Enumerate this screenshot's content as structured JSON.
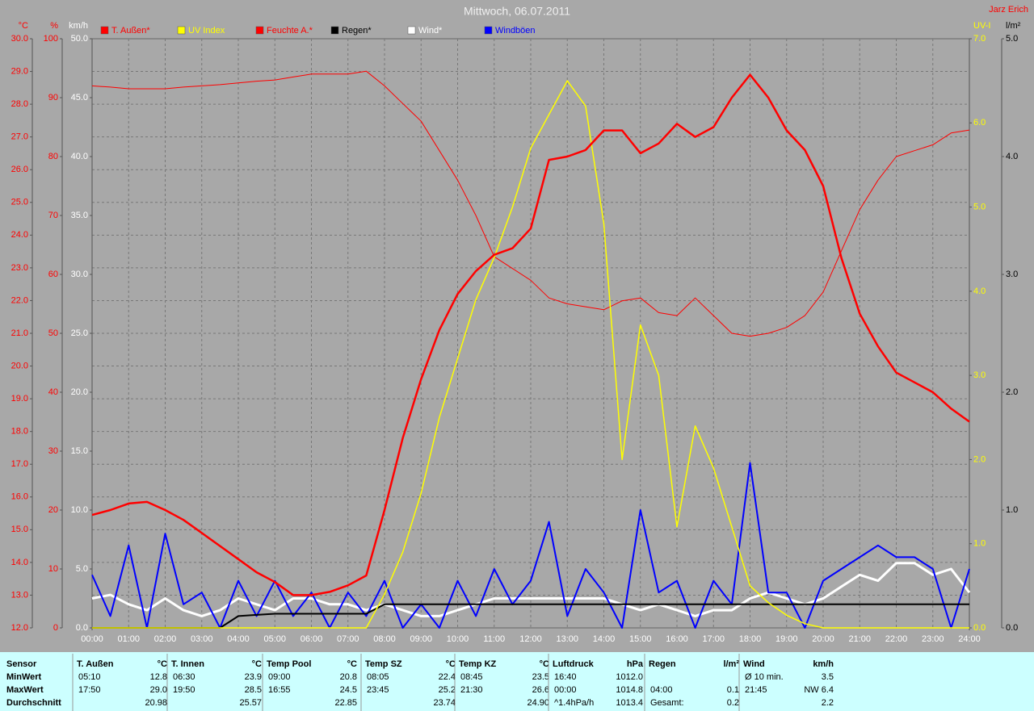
{
  "chart_data": {
    "type": "line",
    "title": "Mittwoch, 06.07.2011",
    "author": "Jarz Erich",
    "grid": true,
    "x": [
      0,
      0.5,
      1,
      1.5,
      2,
      2.5,
      3,
      3.5,
      4,
      4.5,
      5,
      5.5,
      6,
      6.5,
      7,
      7.5,
      8,
      8.5,
      9,
      9.5,
      10,
      10.5,
      11,
      11.5,
      12,
      12.5,
      13,
      13.5,
      14,
      14.5,
      15,
      15.5,
      16,
      16.5,
      17,
      17.5,
      18,
      18.5,
      19,
      19.5,
      20,
      20.5,
      21,
      21.5,
      22,
      22.5,
      23,
      23.5,
      24
    ],
    "xlim": [
      0,
      24
    ],
    "xticks": [
      {
        "value": 0,
        "label": "00:00"
      },
      {
        "value": 1,
        "label": "01:00"
      },
      {
        "value": 2,
        "label": "02:00"
      },
      {
        "value": 3,
        "label": "03:00"
      },
      {
        "value": 4,
        "label": "04:00"
      },
      {
        "value": 5,
        "label": "05:00"
      },
      {
        "value": 6,
        "label": "06:00"
      },
      {
        "value": 7,
        "label": "07:00"
      },
      {
        "value": 8,
        "label": "08:00"
      },
      {
        "value": 9,
        "label": "09:00"
      },
      {
        "value": 10,
        "label": "10:00"
      },
      {
        "value": 11,
        "label": "11:00"
      },
      {
        "value": 12,
        "label": "12:00"
      },
      {
        "value": 13,
        "label": "13:00"
      },
      {
        "value": 14,
        "label": "14:00"
      },
      {
        "value": 15,
        "label": "15:00"
      },
      {
        "value": 16,
        "label": "16:00"
      },
      {
        "value": 17,
        "label": "17:00"
      },
      {
        "value": 18,
        "label": "18:00"
      },
      {
        "value": 19,
        "label": "19:00"
      },
      {
        "value": 20,
        "label": "20:00"
      },
      {
        "value": 21,
        "label": "21:00"
      },
      {
        "value": 22,
        "label": "22:00"
      },
      {
        "value": 23,
        "label": "23:00"
      },
      {
        "value": 24,
        "label": "24:00"
      }
    ],
    "axes": [
      {
        "label": "°C",
        "side": "left",
        "color": "#ff0000",
        "lim": [
          12,
          30
        ],
        "ticks": [
          {
            "value": 12,
            "label": "12.0"
          },
          {
            "value": 13,
            "label": "13.0"
          },
          {
            "value": 14,
            "label": "14.0"
          },
          {
            "value": 15,
            "label": "15.0"
          },
          {
            "value": 16,
            "label": "16.0"
          },
          {
            "value": 17,
            "label": "17.0"
          },
          {
            "value": 18,
            "label": "18.0"
          },
          {
            "value": 19,
            "label": "19.0"
          },
          {
            "value": 20,
            "label": "20.0"
          },
          {
            "value": 21,
            "label": "21.0"
          },
          {
            "value": 22,
            "label": "22.0"
          },
          {
            "value": 23,
            "label": "23.0"
          },
          {
            "value": 24,
            "label": "24.0"
          },
          {
            "value": 25,
            "label": "25.0"
          },
          {
            "value": 26,
            "label": "26.0"
          },
          {
            "value": 27,
            "label": "27.0"
          },
          {
            "value": 28,
            "label": "28.0"
          },
          {
            "value": 29,
            "label": "29.0"
          },
          {
            "value": 30,
            "label": "30.0"
          }
        ]
      },
      {
        "label": "%",
        "side": "left",
        "color": "#ff0000",
        "lim": [
          0,
          100
        ],
        "ticks": [
          0,
          10,
          20,
          30,
          40,
          50,
          60,
          70,
          80,
          90,
          100
        ]
      },
      {
        "label": "km/h",
        "side": "left",
        "color": "#ffffff",
        "lim": [
          0,
          50
        ],
        "ticks": [
          {
            "value": 0,
            "label": "0.0"
          },
          {
            "value": 5,
            "label": "5.0"
          },
          {
            "value": 10,
            "label": "10.0"
          },
          {
            "value": 15,
            "label": "15.0"
          },
          {
            "value": 20,
            "label": "20.0"
          },
          {
            "value": 25,
            "label": "25.0"
          },
          {
            "value": 30,
            "label": "30.0"
          },
          {
            "value": 35,
            "label": "35.0"
          },
          {
            "value": 40,
            "label": "40.0"
          },
          {
            "value": 45,
            "label": "45.0"
          },
          {
            "value": 50,
            "label": "50.0"
          }
        ]
      },
      {
        "label": "UV-I",
        "side": "right",
        "color": "#ffff00",
        "lim": [
          0,
          7
        ],
        "ticks": [
          {
            "value": 0,
            "label": "0.0"
          },
          {
            "value": 1,
            "label": "1.0"
          },
          {
            "value": 2,
            "label": "2.0"
          },
          {
            "value": 3,
            "label": "3.0"
          },
          {
            "value": 4,
            "label": "4.0"
          },
          {
            "value": 5,
            "label": "5.0"
          },
          {
            "value": 6,
            "label": "6.0"
          },
          {
            "value": 7,
            "label": "7.0"
          }
        ]
      },
      {
        "label": "l/m²",
        "side": "right",
        "color": "#000000",
        "lim": [
          0,
          5
        ],
        "ticks": [
          {
            "value": 0,
            "label": "0.0"
          },
          {
            "value": 1,
            "label": "1.0"
          },
          {
            "value": 2,
            "label": "2.0"
          },
          {
            "value": 3,
            "label": "3.0"
          },
          {
            "value": 4,
            "label": "4.0"
          },
          {
            "value": 5,
            "label": "5.0"
          }
        ]
      }
    ],
    "series": [
      {
        "name": "T. Außen*",
        "color": "#ff0000",
        "axis": 0,
        "width": 2.5,
        "values": [
          15.45,
          15.6,
          15.8,
          15.85,
          15.6,
          15.3,
          14.9,
          14.5,
          14.1,
          13.7,
          13.4,
          13.0,
          13.0,
          13.1,
          13.3,
          13.6,
          15.6,
          17.8,
          19.6,
          21.1,
          22.2,
          22.9,
          23.4,
          23.6,
          24.2,
          26.3,
          26.4,
          26.6,
          27.2,
          27.2,
          26.5,
          26.8,
          27.4,
          27.0,
          27.3,
          28.2,
          28.9,
          28.2,
          27.2,
          26.6,
          25.5,
          23.3,
          21.6,
          20.6,
          19.8,
          19.5,
          19.2,
          18.7,
          18.3
        ]
      },
      {
        "name": "UV Index",
        "color": "#ffff00",
        "axis": 3,
        "width": 1.5,
        "values": [
          0,
          0,
          0,
          0,
          0,
          0,
          0,
          0,
          0,
          0,
          0,
          0,
          0,
          0,
          0,
          0,
          0.4,
          0.9,
          1.6,
          2.5,
          3.2,
          3.9,
          4.4,
          5.0,
          5.7,
          6.1,
          6.5,
          6.2,
          4.8,
          2.0,
          3.6,
          3.0,
          1.2,
          2.4,
          1.9,
          1.2,
          0.5,
          0.3,
          0.15,
          0.05,
          0,
          0,
          0,
          0,
          0,
          0,
          0,
          0,
          0
        ]
      },
      {
        "name": "Feuchte A.*",
        "color": "#ff0000",
        "axis": 1,
        "width": 1,
        "values": [
          92,
          91.8,
          91.5,
          91.5,
          91.5,
          91.8,
          92,
          92.2,
          92.5,
          92.8,
          93,
          93.5,
          94,
          94,
          94,
          94.5,
          92,
          89,
          86,
          81,
          76,
          70,
          63,
          61,
          59,
          56,
          55,
          54.5,
          54,
          55.5,
          56,
          53.5,
          53,
          56,
          53,
          50,
          49.5,
          50,
          51,
          53,
          57,
          64,
          71,
          76,
          80,
          81,
          82,
          84,
          84.5
        ]
      },
      {
        "name": "Regen*",
        "color": "#000000",
        "axis": 4,
        "width": 2,
        "values": [
          0,
          0,
          0,
          0,
          0,
          0,
          0,
          0,
          0.1,
          0.11,
          0.12,
          0.12,
          0.12,
          0.12,
          0.12,
          0.12,
          0.2,
          0.2,
          0.2,
          0.2,
          0.2,
          0.2,
          0.2,
          0.2,
          0.2,
          0.2,
          0.2,
          0.2,
          0.2,
          0.2,
          0.2,
          0.2,
          0.2,
          0.2,
          0.2,
          0.2,
          0.2,
          0.2,
          0.2,
          0.2,
          0.2,
          0.2,
          0.2,
          0.2,
          0.2,
          0.2,
          0.2,
          0.2,
          0.2
        ]
      },
      {
        "name": "Wind*",
        "color": "#ffffff",
        "axis": 2,
        "width": 3,
        "values": [
          2.5,
          2.8,
          2.0,
          1.5,
          2.5,
          1.5,
          1.0,
          1.5,
          2.5,
          2.0,
          1.5,
          2.5,
          2.5,
          2.0,
          2.0,
          1.5,
          2.0,
          1.5,
          1.0,
          1.0,
          1.5,
          2.0,
          2.5,
          2.5,
          2.5,
          2.5,
          2.5,
          2.5,
          2.5,
          2.0,
          1.5,
          2.0,
          1.5,
          1.0,
          1.5,
          1.5,
          2.5,
          3.0,
          2.5,
          2.0,
          2.5,
          3.5,
          4.5,
          4.0,
          5.5,
          5.5,
          4.5,
          5.0,
          3.0
        ]
      },
      {
        "name": "Windböen",
        "color": "#0000ff",
        "axis": 2,
        "width": 2,
        "values": [
          4.5,
          1,
          7,
          0,
          8,
          2,
          3,
          0,
          4,
          1,
          4,
          1,
          3,
          0,
          3,
          1,
          4,
          0,
          2,
          0,
          4,
          1,
          5,
          2,
          4,
          9,
          1,
          5,
          3,
          0,
          10,
          3,
          4,
          0,
          4,
          2,
          14,
          3,
          3,
          0,
          4,
          5,
          6,
          7,
          6,
          6,
          5,
          0,
          5
        ]
      }
    ]
  },
  "table": {
    "rows": [
      "MinWert",
      "MaxWert",
      "Durchschnitt"
    ],
    "header": "Sensor",
    "columns": [
      {
        "name": "T. Außen",
        "unit": "°C",
        "cells": [
          [
            "05:10",
            "12.8"
          ],
          [
            "17:50",
            "29.0"
          ],
          [
            "20.98"
          ]
        ]
      },
      {
        "name": "T. Innen",
        "unit": "°C",
        "cells": [
          [
            "06:30",
            "23.9"
          ],
          [
            "19:50",
            "28.5"
          ],
          [
            "25.57"
          ]
        ]
      },
      {
        "name": "Temp Pool",
        "unit": "°C",
        "cells": [
          [
            "09:00",
            "20.8"
          ],
          [
            "16:55",
            "24.5"
          ],
          [
            "22.85"
          ]
        ]
      },
      {
        "name": "Temp SZ",
        "unit": "°C",
        "cells": [
          [
            "08:05",
            "22.4"
          ],
          [
            "23:45",
            "25.2"
          ],
          [
            "23.74"
          ]
        ]
      },
      {
        "name": "Temp KZ",
        "unit": "°C",
        "cells": [
          [
            "08:45",
            "23.5"
          ],
          [
            "21:30",
            "26.6"
          ],
          [
            "24.90"
          ]
        ]
      },
      {
        "name": "Luftdruck",
        "unit": "hPa",
        "cells": [
          [
            "16:40",
            "1012.0"
          ],
          [
            "00:00",
            "1014.8"
          ],
          [
            "^1.4hPa/h",
            "1013.4"
          ]
        ]
      },
      {
        "name": "Regen",
        "unit": "l/m²",
        "cells": [
          [],
          [
            "04:00",
            "0.1"
          ],
          [
            "Gesamt:",
            "0.2"
          ]
        ]
      },
      {
        "name": "Wind",
        "unit": "km/h",
        "cells": [
          [
            "Ø 10 min.",
            "3.5"
          ],
          [
            "21:45",
            "NW 6.4"
          ],
          [
            "2.2"
          ]
        ]
      }
    ]
  }
}
